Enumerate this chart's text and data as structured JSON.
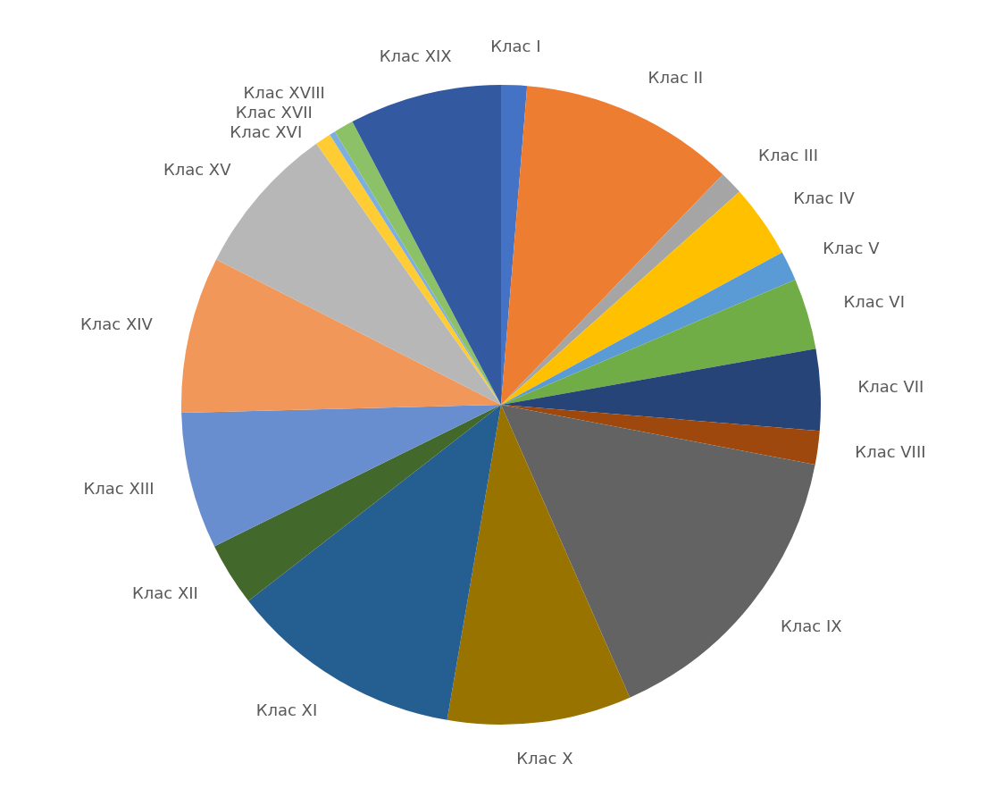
{
  "chart_data": {
    "type": "pie",
    "categories": [
      "Клас I",
      "Клас II",
      "Клас III",
      "Клас IV",
      "Клас V",
      "Клас VI",
      "Клас VII",
      "Клас VIII",
      "Клас IX",
      "Клас X",
      "Клас XI",
      "Клас XII",
      "Клас XIII",
      "Клас XIV",
      "Клас XV",
      "Клас XVI",
      "Клас XVII",
      "Клас XVIII",
      "Клас XIX"
    ],
    "values": [
      1.3,
      10.9,
      1.2,
      3.7,
      1.5,
      3.6,
      4.1,
      1.7,
      15.4,
      9.3,
      11.8,
      3.2,
      6.9,
      7.9,
      7.7,
      0.8,
      0.3,
      1.0,
      7.7
    ],
    "colors": [
      "#4472c4",
      "#ed7d31",
      "#a5a5a5",
      "#ffc000",
      "#5b9bd5",
      "#70ad47",
      "#264478",
      "#9e480e",
      "#636363",
      "#997300",
      "#255e91",
      "#43682b",
      "#698ed0",
      "#f1975a",
      "#b7b7b7",
      "#ffcd33",
      "#7cafdd",
      "#8cc168",
      "#335aa1"
    ],
    "legend": false
  }
}
